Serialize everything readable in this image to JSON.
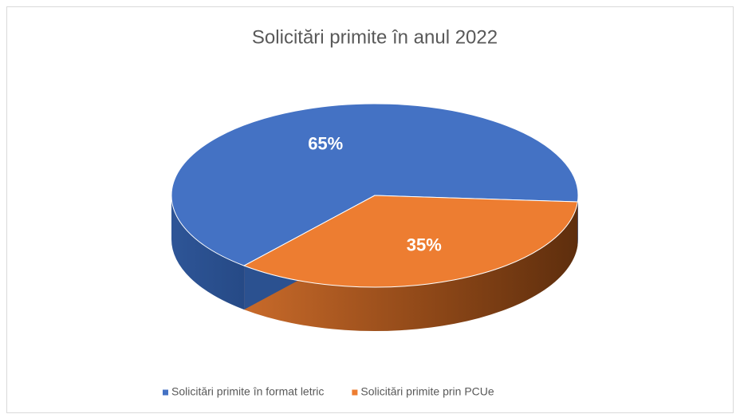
{
  "chart_data": {
    "type": "pie",
    "title": "Solicitări primite în anul 2022",
    "categories": [
      "Solicitări primite în format letric",
      "Solicitări primite prin PCUe"
    ],
    "values": [
      65,
      35
    ],
    "value_labels": [
      "65%",
      "35%"
    ],
    "colors": [
      "#4472c4",
      "#ed7d31"
    ],
    "legend": "bottom"
  }
}
